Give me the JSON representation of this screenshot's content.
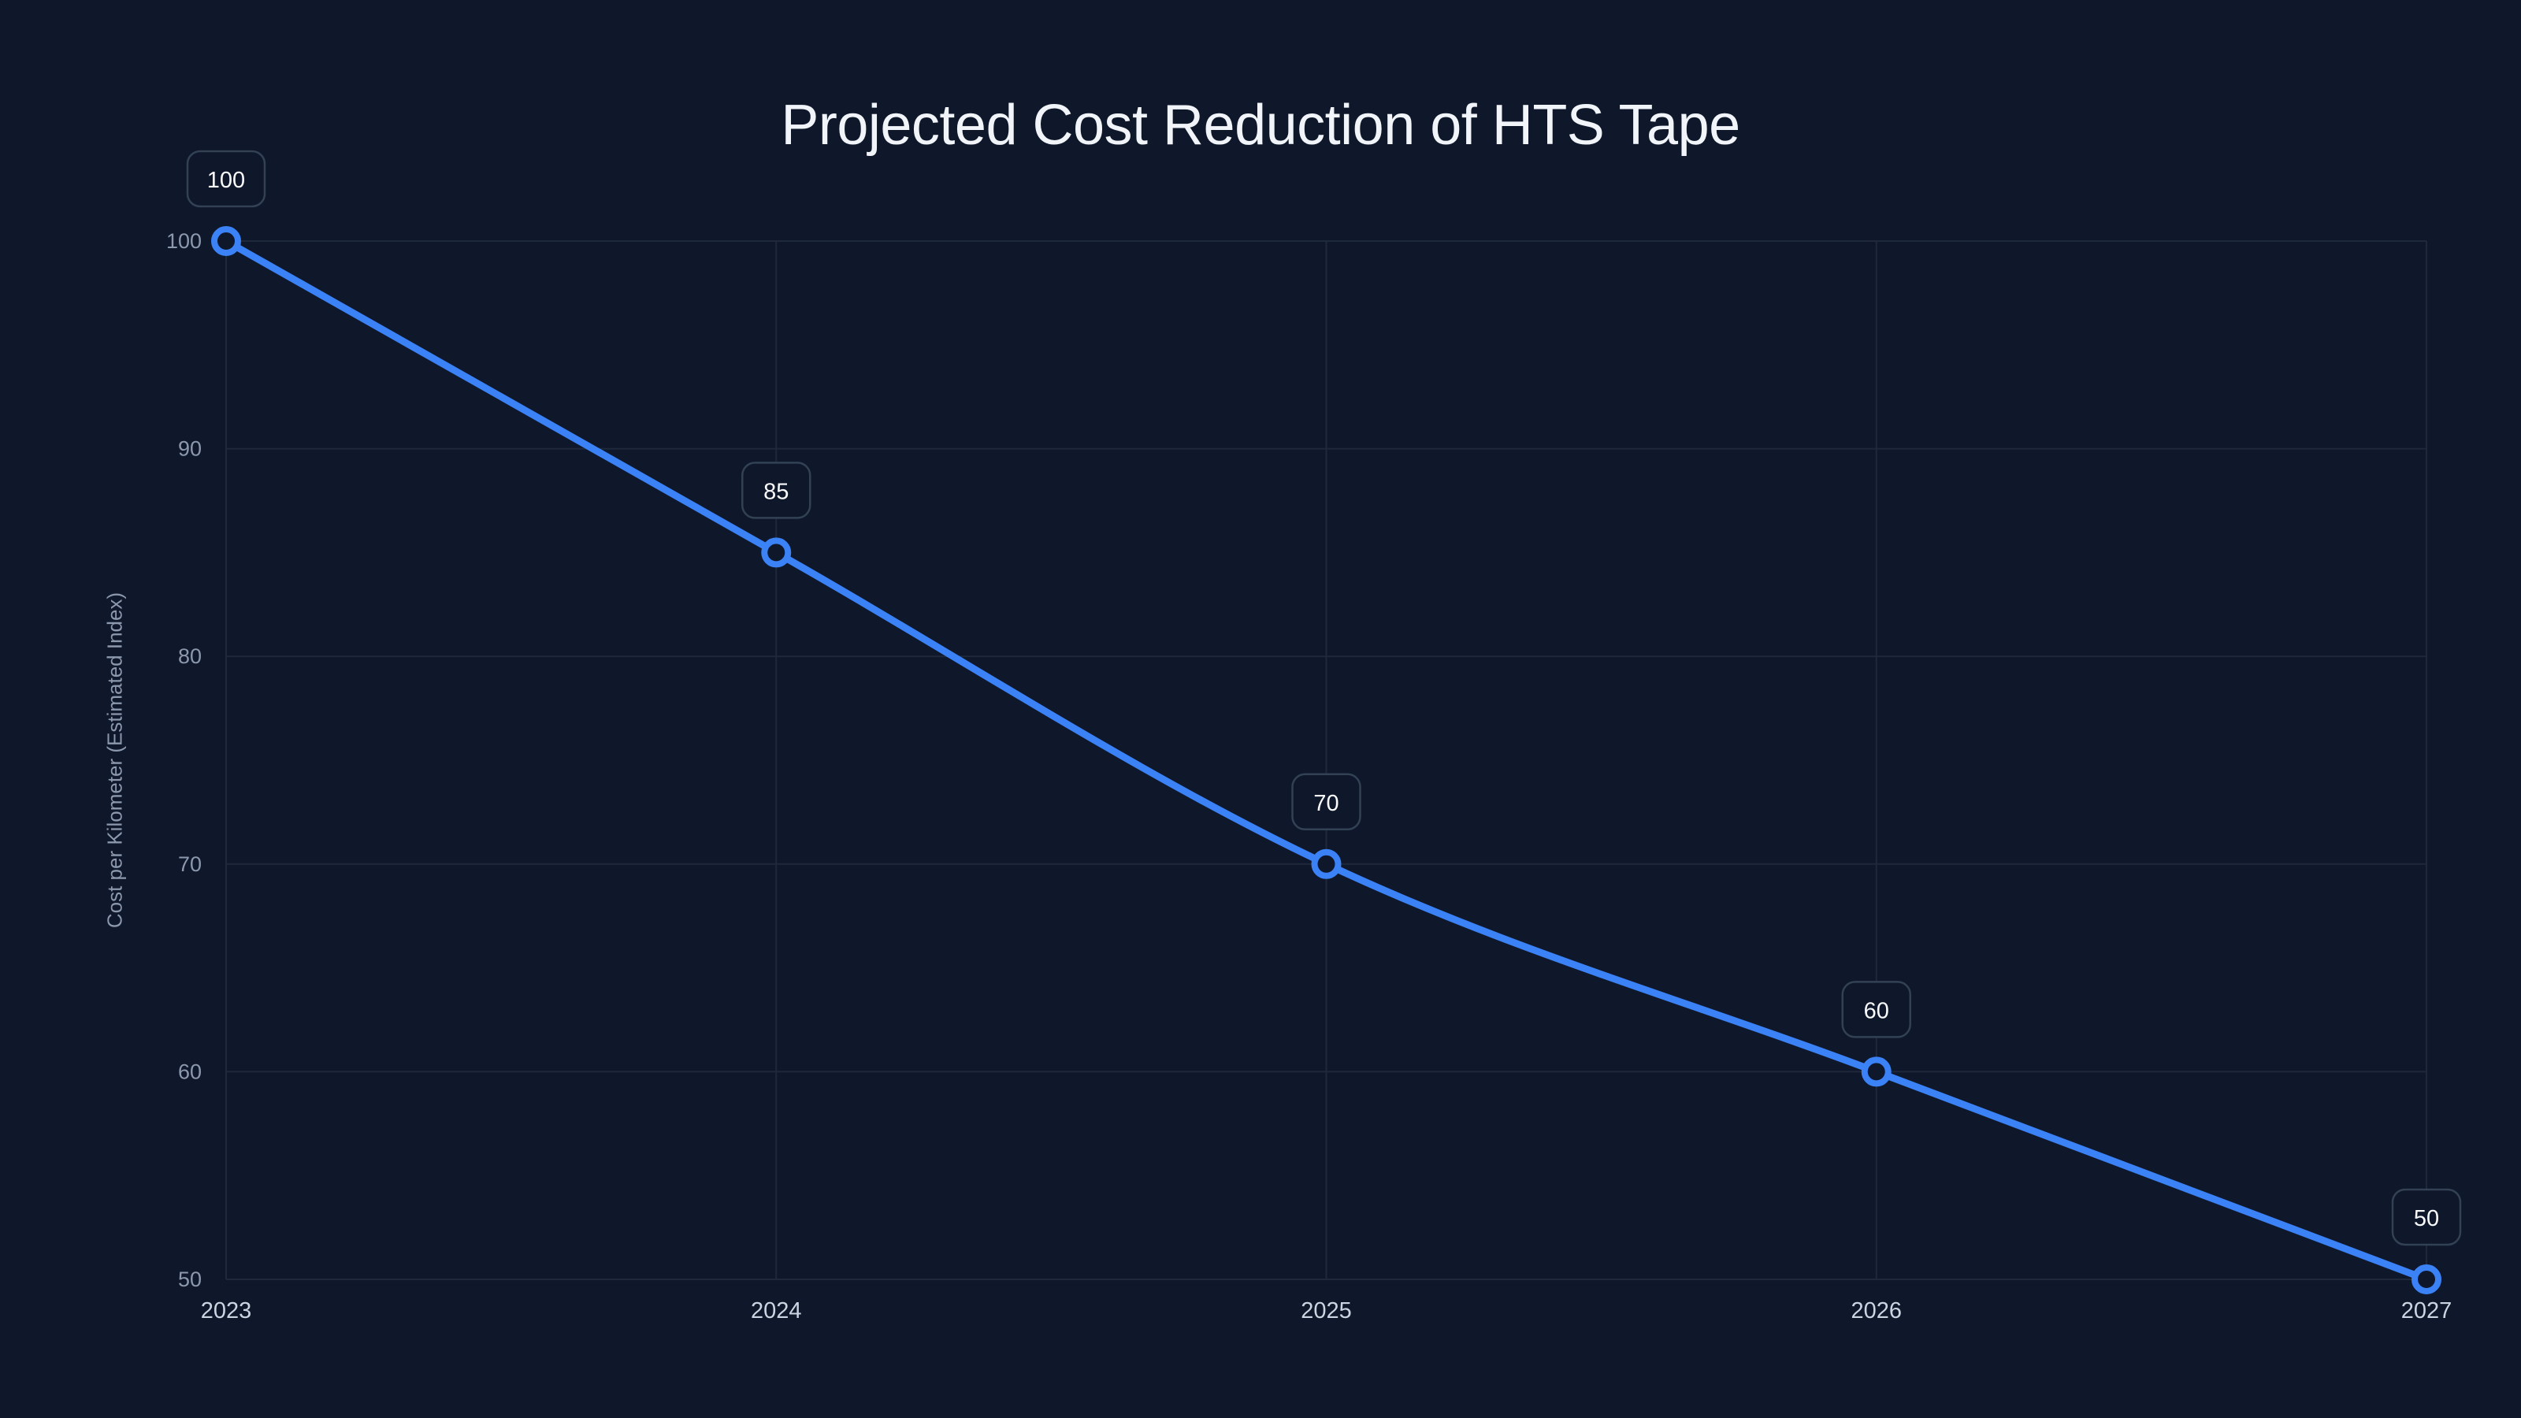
{
  "chart_data": {
    "type": "line",
    "title": "Projected Cost Reduction of HTS Tape",
    "xlabel": "",
    "ylabel": "Cost per Kilometer (Estimated Index)",
    "categories": [
      "2023",
      "2024",
      "2025",
      "2026",
      "2027"
    ],
    "series": [
      {
        "name": "Cost per Kilometer (Estimated Index)",
        "values": [
          100,
          85,
          70,
          60,
          50
        ],
        "color": "#3b82f6"
      }
    ],
    "data_labels": [
      "100",
      "85",
      "70",
      "60",
      "50"
    ],
    "yticks": [
      50,
      60,
      70,
      80,
      90,
      100
    ],
    "ylim": [
      50,
      100
    ],
    "grid": true,
    "legend": "none",
    "smooth": true
  },
  "colors": {
    "background": "#0f172a",
    "line": "#3b82f6",
    "grid": "#1e293b",
    "tick_text": "#8b98ad",
    "x_tick_text": "#cbd5e1",
    "label_border": "#334155",
    "label_text": "#f8fafc"
  }
}
